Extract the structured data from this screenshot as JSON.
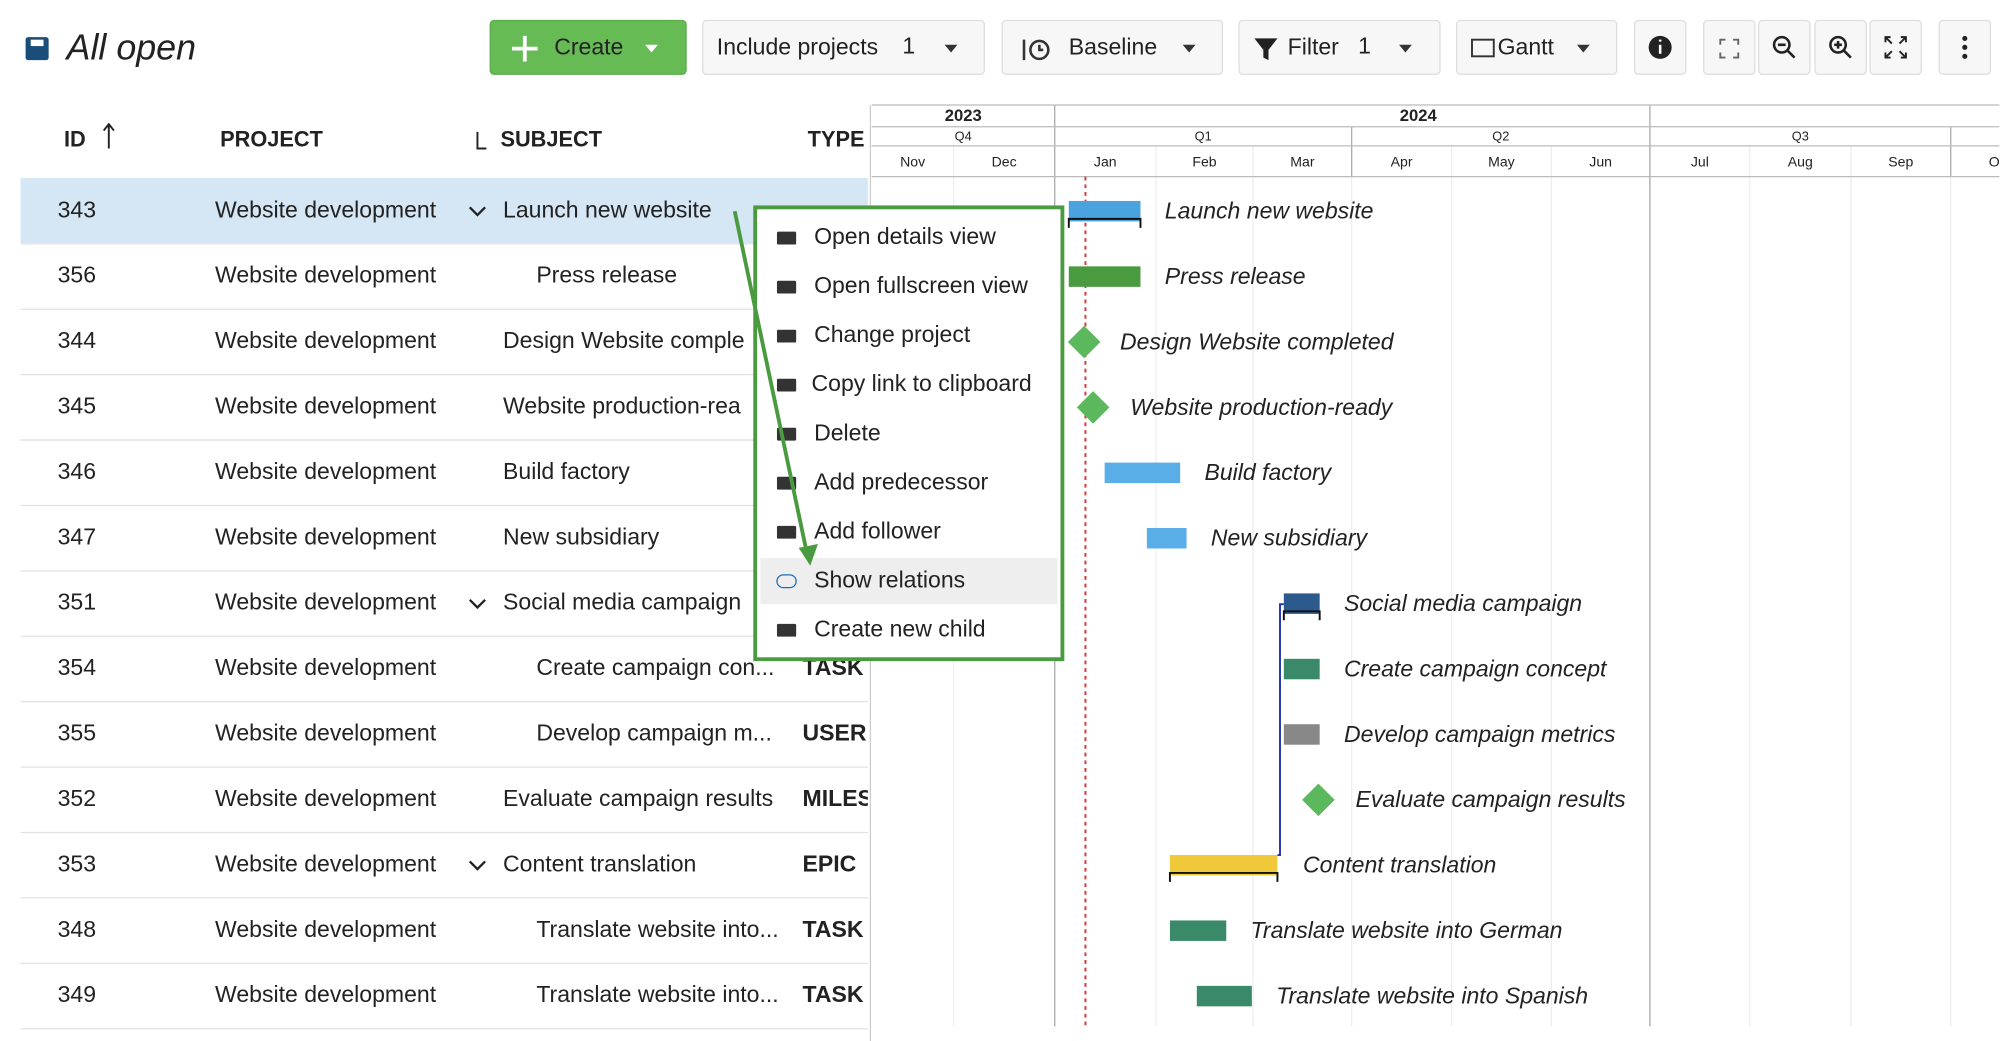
{
  "toolbar": {
    "title": "All open",
    "create": "Create",
    "include_projects": "Include projects",
    "include_projects_count": 1,
    "baseline": "Baseline",
    "filter": "Filter",
    "filter_count": 1,
    "view": "Gantt"
  },
  "table": {
    "columns": [
      "ID",
      "PROJECT",
      "SUBJECT",
      "TYPE"
    ],
    "rows": [
      {
        "id": 343,
        "project": "Website development",
        "subject": "Launch new website"
      },
      {
        "id": 356,
        "project": "Website development",
        "subject": "Press release"
      },
      {
        "id": 344,
        "project": "Website development",
        "subject": "Design Website comple"
      },
      {
        "id": 345,
        "project": "Website development",
        "subject": "Website production-rea"
      },
      {
        "id": 346,
        "project": "Website development",
        "subject": "Build factory"
      },
      {
        "id": 347,
        "project": "Website development",
        "subject": "New subsidiary"
      },
      {
        "id": 351,
        "project": "Website development",
        "subject": "Social media campaign"
      },
      {
        "id": 354,
        "project": "Website development",
        "subject": "Create campaign con...",
        "type": "TASK"
      },
      {
        "id": 355,
        "project": "Website development",
        "subject": "Develop campaign m...",
        "type": "USER"
      },
      {
        "id": 352,
        "project": "Website development",
        "subject": "Evaluate campaign results",
        "type": "MILES"
      },
      {
        "id": 353,
        "project": "Website development",
        "subject": "Content translation",
        "type": "EPIC"
      },
      {
        "id": 348,
        "project": "Website development",
        "subject": "Translate website into...",
        "type": "TASK"
      },
      {
        "id": 349,
        "project": "Website development",
        "subject": "Translate website into...",
        "type": "TASK"
      }
    ]
  },
  "gantt": {
    "years": [
      "2023",
      "2024"
    ],
    "quarters": [
      "Q4",
      "Q1",
      "Q2",
      "Q3"
    ],
    "months": [
      "Nov",
      "Dec",
      "Jan",
      "Feb",
      "Mar",
      "Apr",
      "May",
      "Jun",
      "Jul",
      "Aug",
      "Sep",
      "O"
    ],
    "labels": [
      "Launch new website",
      "Press release",
      "Design Website completed",
      "Website production-ready",
      "Build factory",
      "New subsidiary",
      "Social media campaign",
      "Create campaign concept",
      "Develop campaign metrics",
      "Evaluate campaign results",
      "Content translation",
      "Translate website into German",
      "Translate website into Spanish"
    ]
  },
  "context_menu": {
    "items": [
      "Open details view",
      "Open fullscreen view",
      "Change project",
      "Copy link to clipboard",
      "Delete",
      "Add predecessor",
      "Add follower",
      "Show relations",
      "Create new child"
    ]
  }
}
